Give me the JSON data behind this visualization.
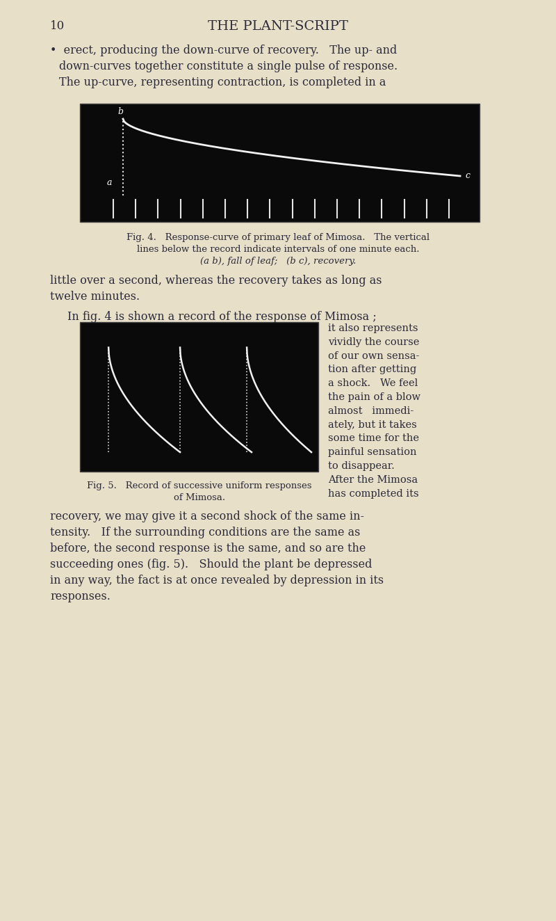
{
  "page_bg": "#e8dfc8",
  "page_number": "10",
  "title": "THE PLANT-SCRIPT",
  "fig4_caption_line1": "Fig. 4.   Response-curve of primary leaf of Mimosa.   The vertical",
  "fig4_caption_line2": "lines below the record indicate intervals of one minute each.",
  "fig4_caption_line3": "(a b), fall of leaf;   (b c), recovery.",
  "fig5_caption_line1": "Fig. 5.   Record of successive uniform responses",
  "fig5_caption_line2": "of Mimosa.",
  "fig_bg": "#0a0a0a",
  "curve_color": "#ffffff",
  "text_color": "#2a2a3a"
}
